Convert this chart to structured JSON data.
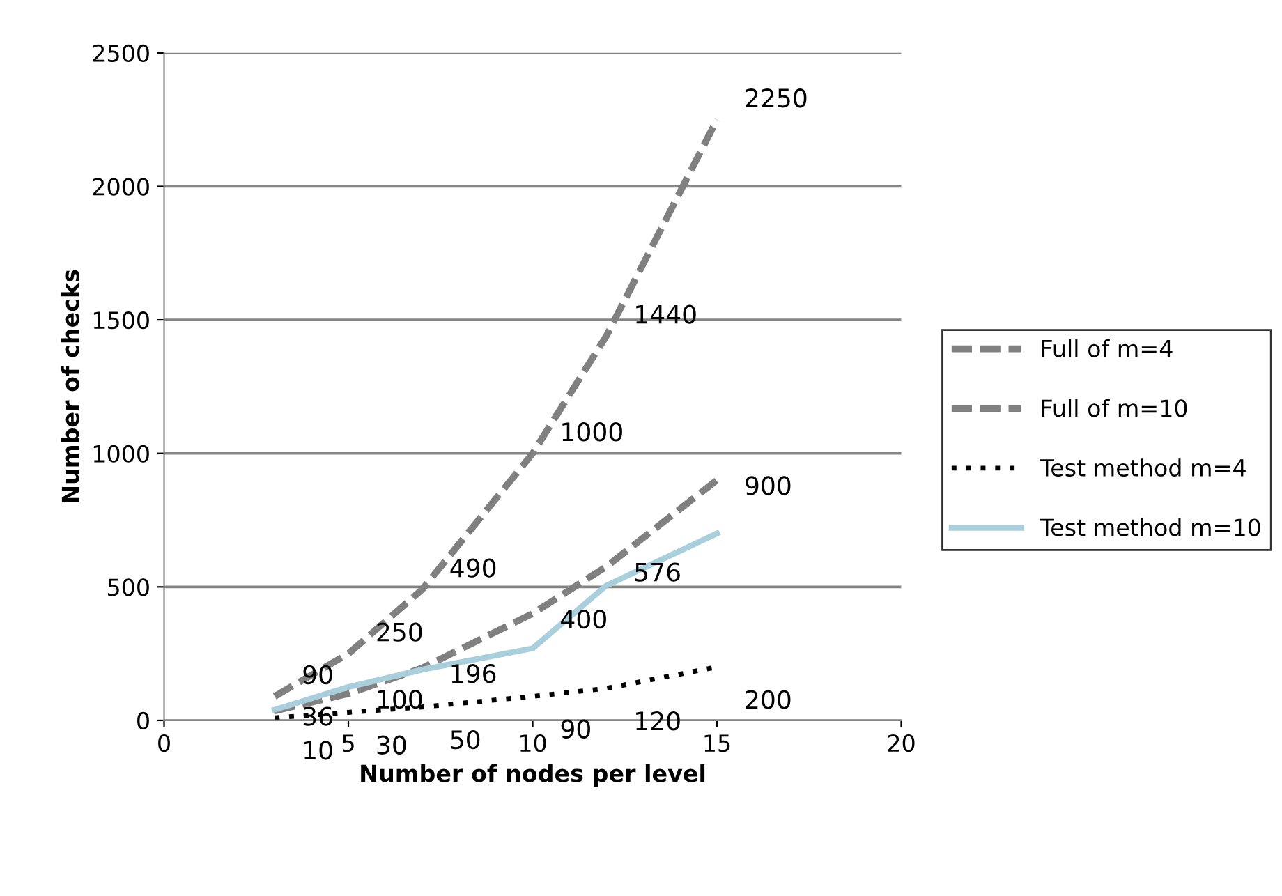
{
  "chart_data": {
    "type": "line",
    "xlabel": "Number of nodes per level",
    "ylabel": "Number of checks",
    "x": [
      3,
      5,
      7,
      10,
      12,
      15
    ],
    "series": [
      {
        "name": "Full of m=4",
        "color": "#808080",
        "line_style": "dashed",
        "values": [
          36,
          100,
          196,
          400,
          576,
          900
        ],
        "value_labels": [
          "36",
          "100",
          "196",
          "400",
          "576",
          "900"
        ]
      },
      {
        "name": "Full of m=10",
        "color": "#808080",
        "line_style": "dashed",
        "values": [
          90,
          250,
          490,
          1000,
          1440,
          2250
        ],
        "value_labels": [
          "90",
          "250",
          "490",
          "1000",
          "1440",
          "2250"
        ]
      },
      {
        "name": "Test method m=4",
        "color": "#000000",
        "line_style": "dotted",
        "values": [
          10,
          30,
          50,
          90,
          120,
          200
        ],
        "value_labels": [
          "10",
          "30",
          "50",
          "90",
          "120",
          "200"
        ]
      },
      {
        "name": "Test method m=10",
        "color": "#a9cfdc",
        "line_style": "solid",
        "values": [
          40,
          125,
          190,
          270,
          505,
          700
        ]
      }
    ],
    "xlim": [
      0,
      20
    ],
    "xticks": [
      0,
      5,
      10,
      15,
      20
    ],
    "ylim": [
      0,
      2500
    ],
    "yticks": [
      0,
      500,
      1000,
      1500,
      2000,
      2500
    ],
    "grid": "y",
    "legend": "right",
    "marker": "none"
  }
}
